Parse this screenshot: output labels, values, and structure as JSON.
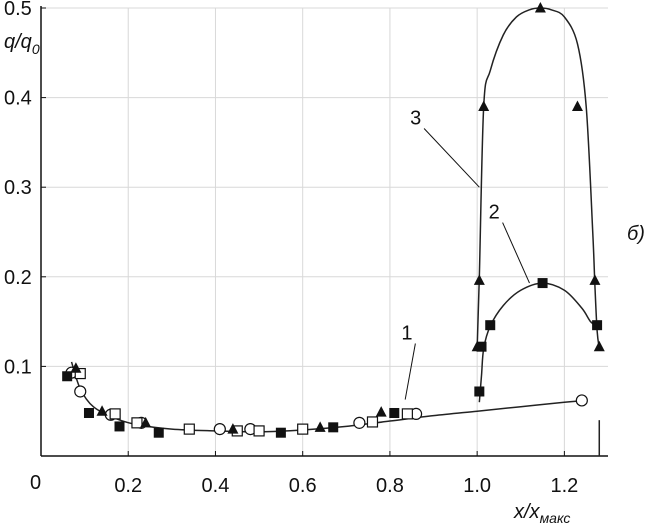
{
  "chart_data": {
    "type": "scatter",
    "panel_label": "б)",
    "xlabel_main": "x/x",
    "xlabel_sub": "макс",
    "ylabel_main": "q/q",
    "ylabel_sub": "0",
    "origin_label": "0",
    "xlim": [
      0,
      1.3
    ],
    "ylim": [
      0,
      0.5
    ],
    "xticks": [
      0.2,
      0.4,
      0.6,
      0.8,
      1.0,
      1.2
    ],
    "xtick_labels": [
      "0.2",
      "0.4",
      "0.6",
      "0.8",
      "1.0",
      "1.2"
    ],
    "yticks": [
      0.1,
      0.2,
      0.3,
      0.4,
      0.5
    ],
    "ytick_labels": [
      "0.1",
      "0.2",
      "0.3",
      "0.4",
      "0.5"
    ],
    "grid": true,
    "curve_labels": [
      {
        "text": "1",
        "series": "curve1",
        "at": [
          0.84,
          0.13
        ],
        "to": [
          0.835,
          0.063
        ]
      },
      {
        "text": "2",
        "series": "curve2",
        "at": [
          1.04,
          0.265
        ],
        "to": [
          1.12,
          0.193
        ]
      },
      {
        "text": "3",
        "series": "curve3",
        "at": [
          0.86,
          0.37
        ],
        "to": [
          1.005,
          0.3
        ]
      }
    ],
    "lines": [
      {
        "id": "curve1",
        "color": "#222222",
        "x": [
          0.07,
          0.09,
          0.12,
          0.17,
          0.22,
          0.3,
          0.4,
          0.5,
          0.6,
          0.7,
          0.8,
          0.9,
          1.0,
          1.1,
          1.2,
          1.25
        ],
        "y": [
          0.105,
          0.075,
          0.055,
          0.042,
          0.035,
          0.03,
          0.028,
          0.027,
          0.029,
          0.033,
          0.039,
          0.045,
          0.05,
          0.055,
          0.06,
          0.062
        ]
      },
      {
        "id": "curve2",
        "color": "#222222",
        "x": [
          1.005,
          1.01,
          1.015,
          1.03,
          1.06,
          1.1,
          1.15,
          1.2,
          1.24,
          1.26,
          1.275
        ],
        "y": [
          0.06,
          0.09,
          0.12,
          0.145,
          0.168,
          0.185,
          0.193,
          0.185,
          0.165,
          0.15,
          0.145
        ]
      },
      {
        "id": "curve3",
        "color": "#222222",
        "x": [
          1.0,
          1.005,
          1.015,
          1.03,
          1.06,
          1.09,
          1.12,
          1.145,
          1.17,
          1.2,
          1.23,
          1.25,
          1.265,
          1.27,
          1.275,
          1.28
        ],
        "y": [
          0.12,
          0.2,
          0.39,
          0.43,
          0.47,
          0.49,
          0.498,
          0.5,
          0.498,
          0.49,
          0.46,
          0.39,
          0.25,
          0.19,
          0.14,
          0.12
        ]
      },
      {
        "id": "tail",
        "color": "#222222",
        "x": [
          1.28,
          1.28
        ],
        "y": [
          0.04,
          0.0
        ]
      }
    ],
    "series": [
      {
        "id": "open-circles",
        "marker": "circle-open",
        "x": [
          0.07,
          0.09,
          0.16,
          0.23,
          0.41,
          0.48,
          0.73,
          0.86,
          1.24
        ],
        "y": [
          0.093,
          0.072,
          0.046,
          0.037,
          0.03,
          0.03,
          0.037,
          0.047,
          0.062
        ]
      },
      {
        "id": "open-squares",
        "marker": "square-open",
        "x": [
          0.09,
          0.17,
          0.22,
          0.34,
          0.45,
          0.5,
          0.6,
          0.76,
          0.84
        ],
        "y": [
          0.092,
          0.047,
          0.037,
          0.03,
          0.028,
          0.028,
          0.03,
          0.038,
          0.047
        ]
      },
      {
        "id": "filled-squares",
        "marker": "square-filled",
        "x": [
          0.06,
          0.11,
          0.18,
          0.27,
          0.55,
          0.67,
          0.81,
          1.005,
          1.01,
          1.03,
          1.15,
          1.275
        ],
        "y": [
          0.089,
          0.048,
          0.033,
          0.026,
          0.026,
          0.032,
          0.048,
          0.072,
          0.122,
          0.146,
          0.193,
          0.146
        ]
      },
      {
        "id": "filled-triangles",
        "marker": "triangle-filled",
        "x": [
          0.08,
          0.14,
          0.24,
          0.44,
          0.64,
          0.78,
          1.0,
          1.005,
          1.015,
          1.145,
          1.23,
          1.27,
          1.28
        ],
        "y": [
          0.098,
          0.05,
          0.037,
          0.03,
          0.032,
          0.049,
          0.122,
          0.196,
          0.39,
          0.5,
          0.39,
          0.196,
          0.122
        ]
      }
    ]
  }
}
